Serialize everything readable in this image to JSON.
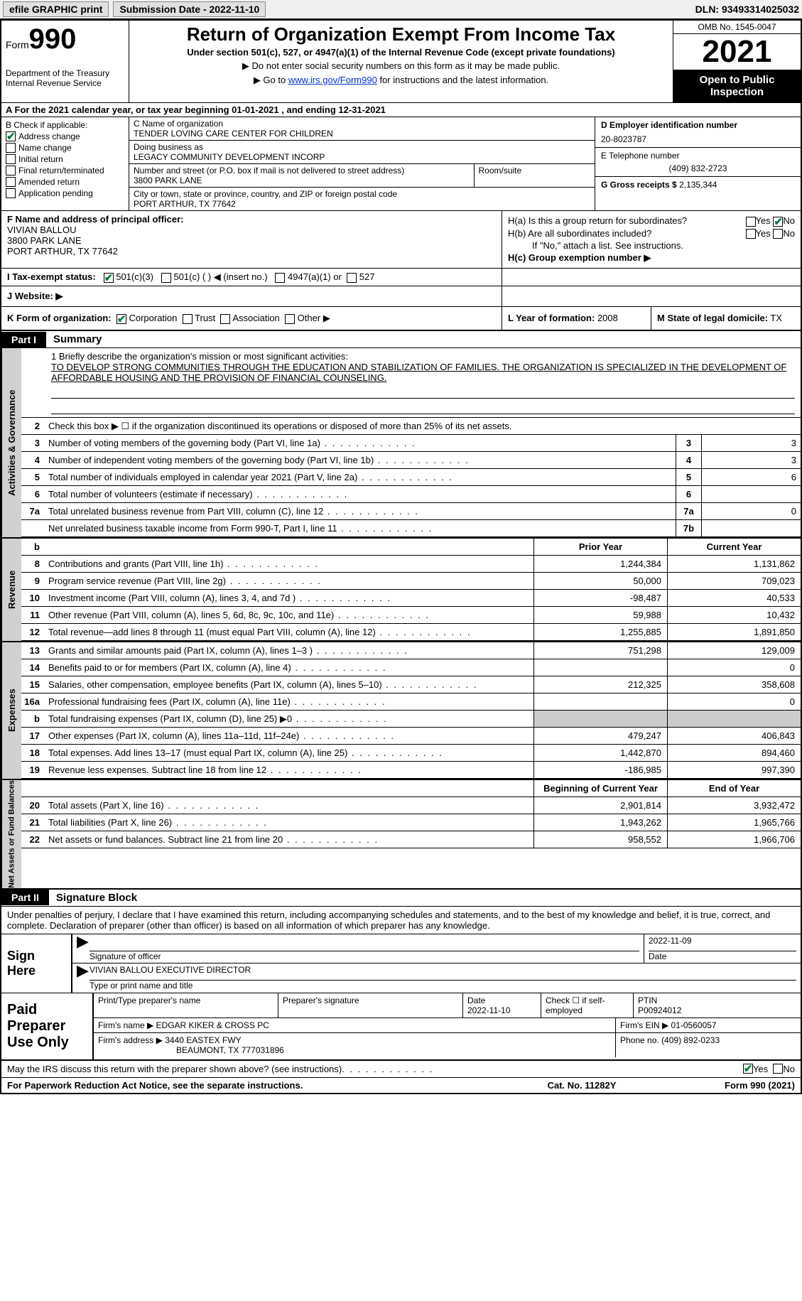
{
  "topbar": {
    "efile": "efile GRAPHIC print",
    "submission_label": "Submission Date - 2022-11-10",
    "dln": "DLN: 93493314025032"
  },
  "header": {
    "form_word": "Form",
    "form_num": "990",
    "dept": "Department of the Treasury Internal Revenue Service",
    "title": "Return of Organization Exempt From Income Tax",
    "subtitle": "Under section 501(c), 527, or 4947(a)(1) of the Internal Revenue Code (except private foundations)",
    "line1": "▶ Do not enter social security numbers on this form as it may be made public.",
    "line2_pre": "▶ Go to ",
    "line2_link": "www.irs.gov/Form990",
    "line2_post": " for instructions and the latest information.",
    "omb": "OMB No. 1545-0047",
    "year": "2021",
    "open": "Open to Public Inspection"
  },
  "row_a": "A For the 2021 calendar year, or tax year beginning 01-01-2021   , and ending 12-31-2021",
  "b": {
    "label": "B Check if applicable:",
    "items": [
      {
        "checked": true,
        "text": "Address change"
      },
      {
        "checked": false,
        "text": "Name change"
      },
      {
        "checked": false,
        "text": "Initial return"
      },
      {
        "checked": false,
        "text": "Final return/terminated"
      },
      {
        "checked": false,
        "text": "Amended return"
      },
      {
        "checked": false,
        "text": "Application pending"
      }
    ]
  },
  "c": {
    "name_label": "C Name of organization",
    "name": "TENDER LOVING CARE CENTER FOR CHILDREN",
    "dba_label": "Doing business as",
    "dba": "LEGACY COMMUNITY DEVELOPMENT INCORP",
    "street_label": "Number and street (or P.O. box if mail is not delivered to street address)",
    "street": "3800 PARK LANE",
    "room_label": "Room/suite",
    "room": "",
    "city_label": "City or town, state or province, country, and ZIP or foreign postal code",
    "city": "PORT ARTHUR, TX  77642"
  },
  "d": {
    "ein_label": "D Employer identification number",
    "ein": "20-8023787",
    "phone_label": "E Telephone number",
    "phone": "(409) 832-2723",
    "gross_label": "G Gross receipts $",
    "gross": "2,135,344"
  },
  "f": {
    "label": "F  Name and address of principal officer:",
    "name": "VIVIAN BALLOU",
    "addr1": "3800 PARK LANE",
    "addr2": "PORT ARTHUR, TX  77642"
  },
  "h": {
    "a_label": "H(a)  Is this a group return for subordinates?",
    "b_label": "H(b)  Are all subordinates included?",
    "b_note": "If \"No,\" attach a list. See instructions.",
    "c_label": "H(c)  Group exemption number ▶"
  },
  "i": {
    "label": "I  Tax-exempt status:",
    "opt1": "501(c)(3)",
    "opt2": "501(c) (  ) ◀ (insert no.)",
    "opt3": "4947(a)(1) or",
    "opt4": "527"
  },
  "j": {
    "label": "J  Website: ▶"
  },
  "k": {
    "label": "K Form of organization:",
    "opts": [
      "Corporation",
      "Trust",
      "Association",
      "Other ▶"
    ],
    "l_label": "L Year of formation:",
    "l_val": "2008",
    "m_label": "M State of legal domicile:",
    "m_val": "TX"
  },
  "part1": {
    "tab": "Part I",
    "title": "Summary"
  },
  "mission": {
    "label": "1   Briefly describe the organization's mission or most significant activities:",
    "text": "TO DEVELOP STRONG COMMUNITIES THROUGH THE EDUCATION AND STABILIZATION OF FAMILIES. THE ORGANIZATION IS SPECIALIZED IN THE DEVELOPMENT OF AFFORDABLE HOUSING AND THE PROVISION OF FINANCIAL COUNSELING."
  },
  "gov_lines": [
    {
      "num": "2",
      "desc": "Check this box ▶ ☐  if the organization discontinued its operations or disposed of more than 25% of its net assets."
    },
    {
      "num": "3",
      "desc": "Number of voting members of the governing body (Part VI, line 1a)",
      "box": "3",
      "val": "3"
    },
    {
      "num": "4",
      "desc": "Number of independent voting members of the governing body (Part VI, line 1b)",
      "box": "4",
      "val": "3"
    },
    {
      "num": "5",
      "desc": "Total number of individuals employed in calendar year 2021 (Part V, line 2a)",
      "box": "5",
      "val": "6"
    },
    {
      "num": "6",
      "desc": "Total number of volunteers (estimate if necessary)",
      "box": "6",
      "val": ""
    },
    {
      "num": "7a",
      "desc": "Total unrelated business revenue from Part VIII, column (C), line 12",
      "box": "7a",
      "val": "0"
    },
    {
      "num": "",
      "desc": "Net unrelated business taxable income from Form 990-T, Part I, line 11",
      "box": "7b",
      "val": ""
    }
  ],
  "pycy_header": {
    "py": "Prior Year",
    "cy": "Current Year"
  },
  "revenue_lines": [
    {
      "num": "8",
      "desc": "Contributions and grants (Part VIII, line 1h)",
      "py": "1,244,384",
      "cy": "1,131,862"
    },
    {
      "num": "9",
      "desc": "Program service revenue (Part VIII, line 2g)",
      "py": "50,000",
      "cy": "709,023"
    },
    {
      "num": "10",
      "desc": "Investment income (Part VIII, column (A), lines 3, 4, and 7d )",
      "py": "-98,487",
      "cy": "40,533"
    },
    {
      "num": "11",
      "desc": "Other revenue (Part VIII, column (A), lines 5, 6d, 8c, 9c, 10c, and 11e)",
      "py": "59,988",
      "cy": "10,432"
    },
    {
      "num": "12",
      "desc": "Total revenue—add lines 8 through 11 (must equal Part VIII, column (A), line 12)",
      "py": "1,255,885",
      "cy": "1,891,850"
    }
  ],
  "expense_lines": [
    {
      "num": "13",
      "desc": "Grants and similar amounts paid (Part IX, column (A), lines 1–3 )",
      "py": "751,298",
      "cy": "129,009"
    },
    {
      "num": "14",
      "desc": "Benefits paid to or for members (Part IX, column (A), line 4)",
      "py": "",
      "cy": "0"
    },
    {
      "num": "15",
      "desc": "Salaries, other compensation, employee benefits (Part IX, column (A), lines 5–10)",
      "py": "212,325",
      "cy": "358,608"
    },
    {
      "num": "16a",
      "desc": "Professional fundraising fees (Part IX, column (A), line 11e)",
      "py": "",
      "cy": "0"
    },
    {
      "num": "b",
      "desc": "Total fundraising expenses (Part IX, column (D), line 25) ▶0",
      "py": "",
      "cy": "",
      "shaded": true
    },
    {
      "num": "17",
      "desc": "Other expenses (Part IX, column (A), lines 11a–11d, 11f–24e)",
      "py": "479,247",
      "cy": "406,843"
    },
    {
      "num": "18",
      "desc": "Total expenses. Add lines 13–17 (must equal Part IX, column (A), line 25)",
      "py": "1,442,870",
      "cy": "894,460"
    },
    {
      "num": "19",
      "desc": "Revenue less expenses. Subtract line 18 from line 12",
      "py": "-186,985",
      "cy": "997,390"
    }
  ],
  "net_header": {
    "py": "Beginning of Current Year",
    "cy": "End of Year"
  },
  "net_lines": [
    {
      "num": "20",
      "desc": "Total assets (Part X, line 16)",
      "py": "2,901,814",
      "cy": "3,932,472"
    },
    {
      "num": "21",
      "desc": "Total liabilities (Part X, line 26)",
      "py": "1,943,262",
      "cy": "1,965,766"
    },
    {
      "num": "22",
      "desc": "Net assets or fund balances. Subtract line 21 from line 20",
      "py": "958,552",
      "cy": "1,966,706"
    }
  ],
  "vtabs": {
    "gov": "Activities & Governance",
    "rev": "Revenue",
    "exp": "Expenses",
    "net": "Net Assets or Fund Balances"
  },
  "part2": {
    "tab": "Part II",
    "title": "Signature Block"
  },
  "sig": {
    "intro": "Under penalties of perjury, I declare that I have examined this return, including accompanying schedules and statements, and to the best of my knowledge and belief, it is true, correct, and complete. Declaration of preparer (other than officer) is based on all information of which preparer has any knowledge.",
    "sign_here": "Sign Here",
    "sig_off_label": "Signature of officer",
    "date": "2022-11-09",
    "date_label": "Date",
    "name": "VIVIAN BALLOU  EXECUTIVE DIRECTOR",
    "name_label": "Type or print name and title"
  },
  "prep": {
    "label": "Paid Preparer Use Only",
    "r1": {
      "c1_label": "Print/Type preparer's name",
      "c1": "",
      "c2_label": "Preparer's signature",
      "c3_label": "Date",
      "c3": "2022-11-10",
      "c4_label": "Check ☐ if self-employed",
      "c5_label": "PTIN",
      "c5": "P00924012"
    },
    "r2": {
      "label": "Firm's name      ▶",
      "val": "EDGAR KIKER & CROSS PC",
      "ein_label": "Firm's EIN ▶",
      "ein": "01-0560057"
    },
    "r3": {
      "label": "Firm's address ▶",
      "val1": "3440 EASTEX FWY",
      "val2": "BEAUMONT, TX  777031896",
      "phone_label": "Phone no.",
      "phone": "(409) 892-0233"
    }
  },
  "discuss": {
    "text": "May the IRS discuss this return with the preparer shown above? (see instructions)",
    "yes": "Yes",
    "no": "No"
  },
  "footer": {
    "left": "For Paperwork Reduction Act Notice, see the separate instructions.",
    "mid": "Cat. No. 11282Y",
    "right": "Form 990 (2021)"
  }
}
